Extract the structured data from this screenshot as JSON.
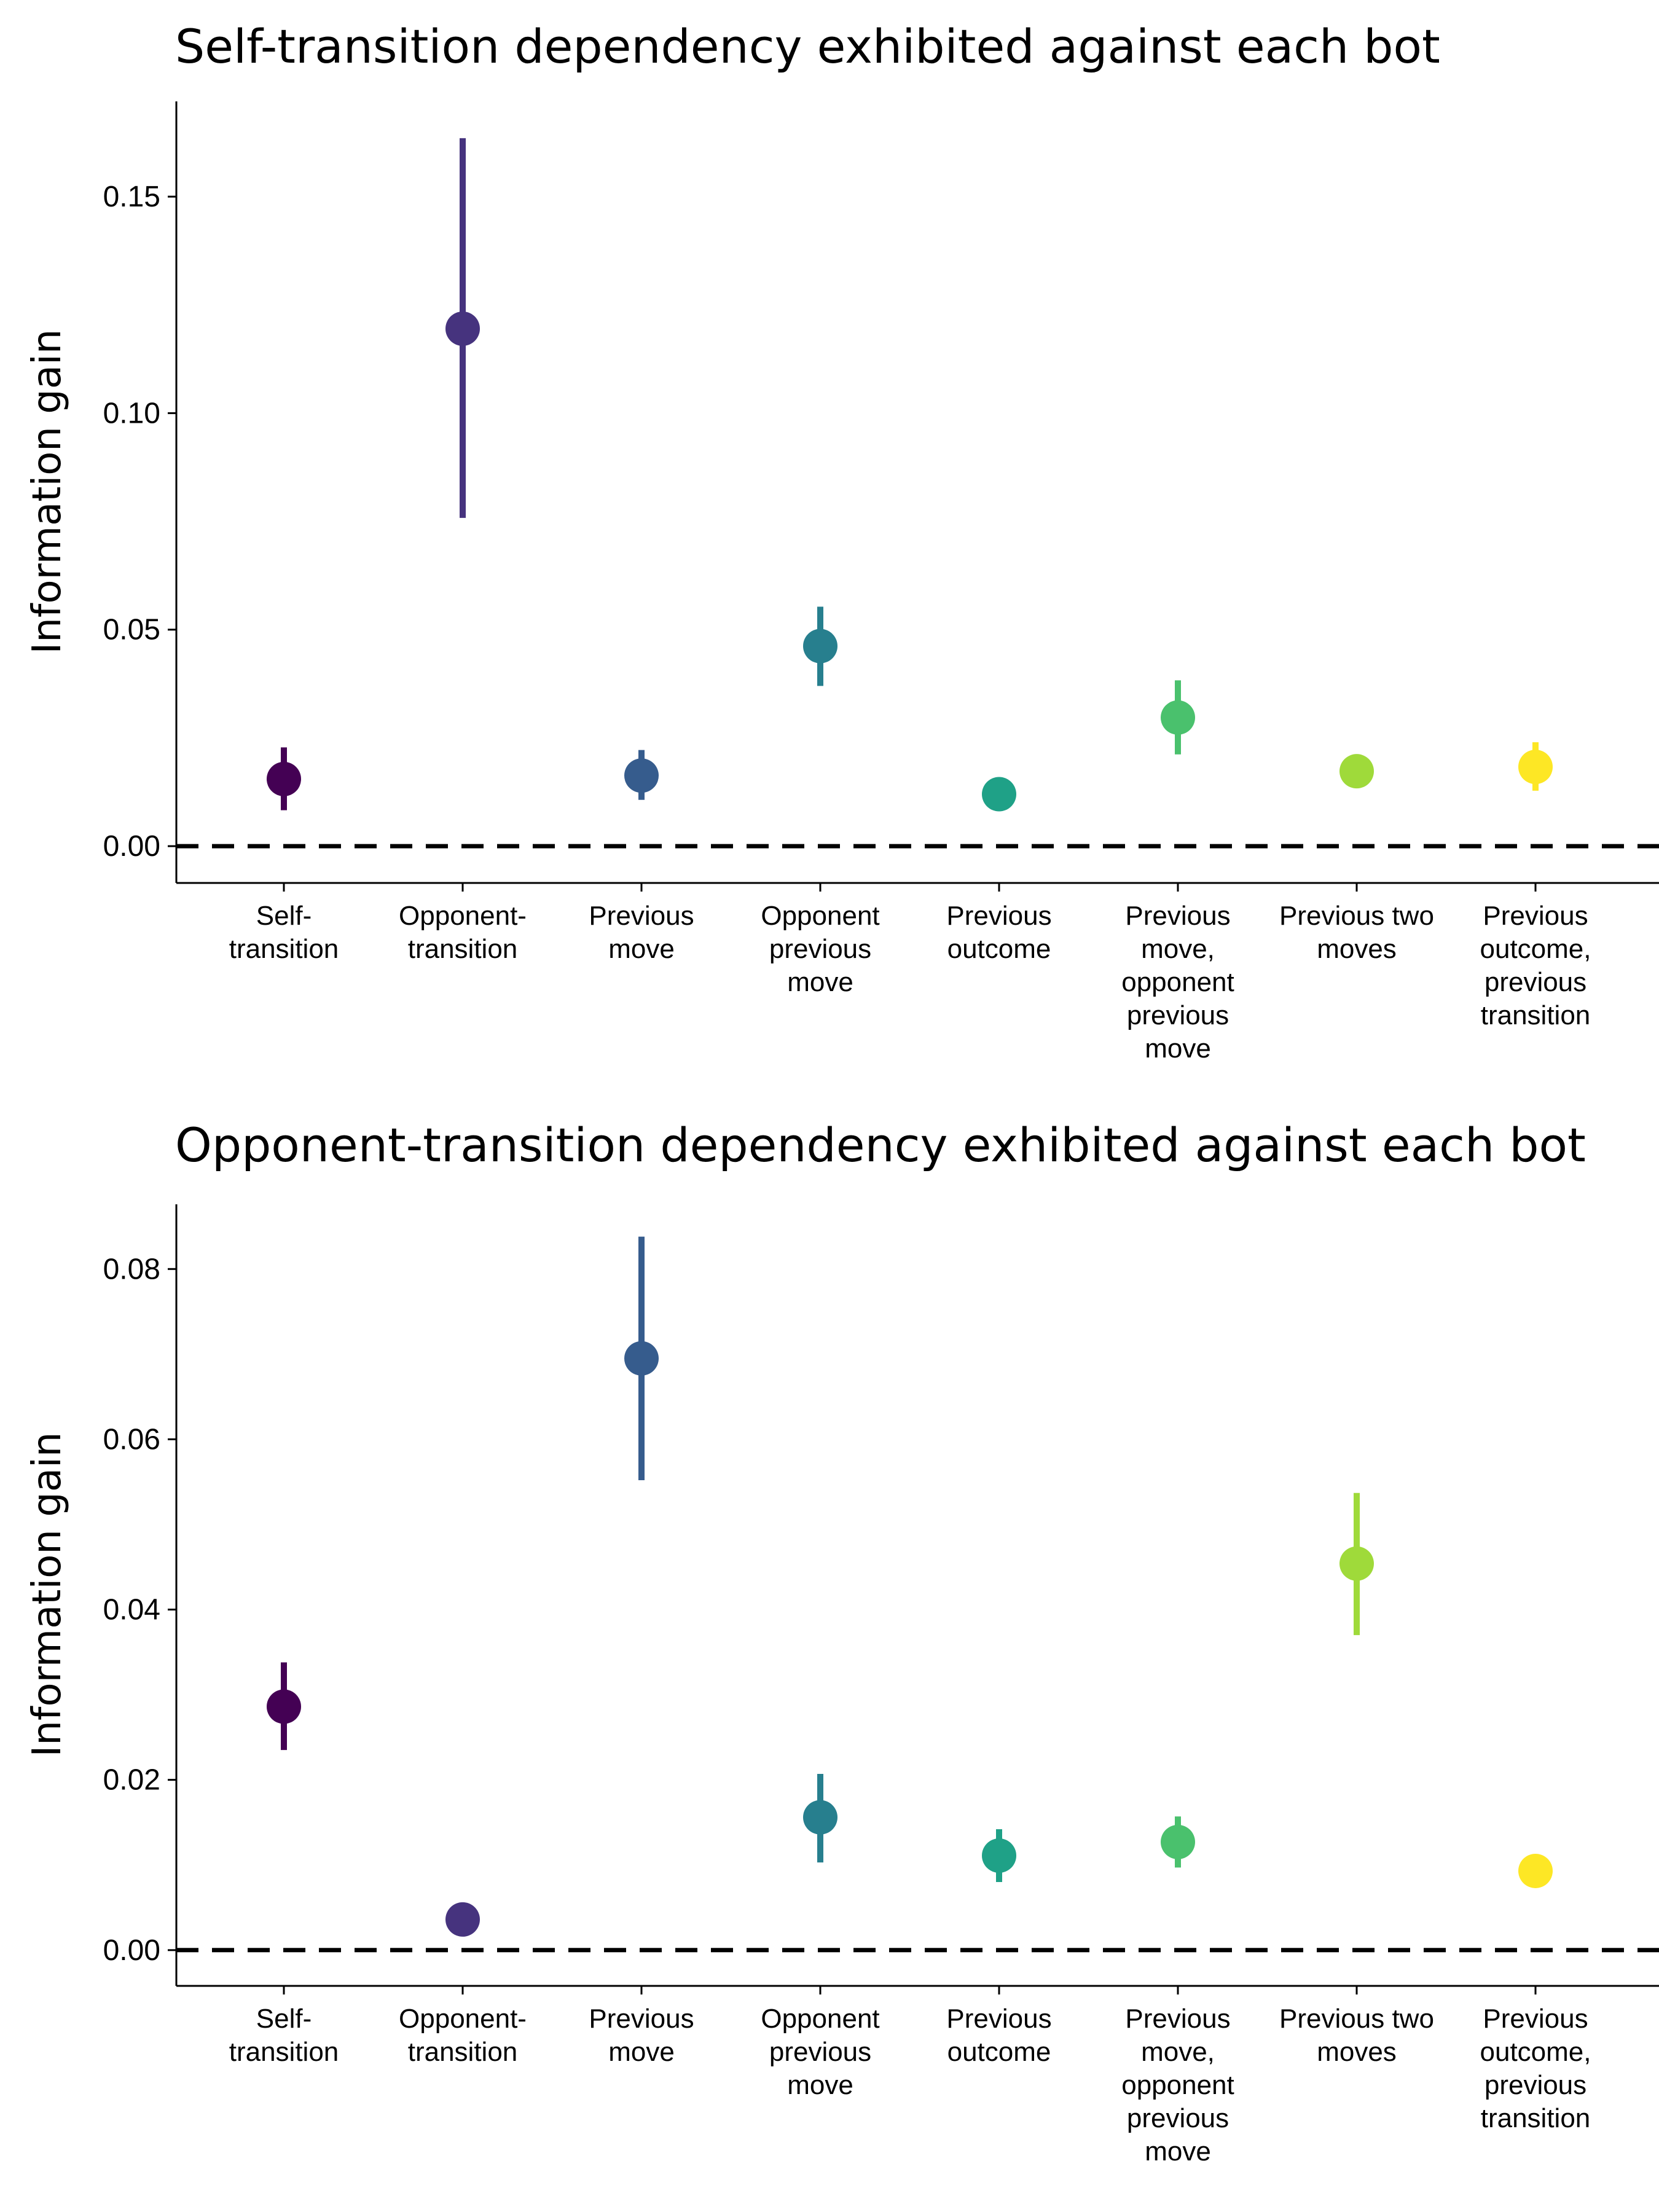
{
  "chart_data": [
    {
      "type": "scatter",
      "title": "Self-transition dependency exhibited against each bot",
      "xlabel": "",
      "ylabel": "Information gain",
      "ylim": [
        -0.0085,
        0.172
      ],
      "yticks": [
        "0.00",
        "0.05",
        "0.10",
        "0.15"
      ],
      "ytick_values": [
        0,
        0.05,
        0.1,
        0.15
      ],
      "reference_line": {
        "y": 0,
        "style": "dashed"
      },
      "categories": [
        [
          "Self-",
          "transition"
        ],
        [
          "Opponent-",
          "transition"
        ],
        [
          "Previous",
          "move"
        ],
        [
          "Opponent",
          "previous",
          "move"
        ],
        [
          "Previous",
          "outcome"
        ],
        [
          "Previous",
          "move,",
          "opponent",
          "previous",
          "move"
        ],
        [
          "Previous two",
          "moves"
        ],
        [
          "Previous",
          "outcome,",
          "previous",
          "transition"
        ]
      ],
      "values": [
        0.0155,
        0.1195,
        0.0163,
        0.0462,
        0.012,
        0.0297,
        0.0173,
        0.0183
      ],
      "lower": [
        0.0083,
        0.0758,
        0.0107,
        0.037,
        0.01,
        0.0212,
        0.015,
        0.0128
      ],
      "upper": [
        0.0228,
        0.1635,
        0.0222,
        0.0553,
        0.014,
        0.0383,
        0.0196,
        0.024
      ],
      "colors": [
        "#440154",
        "#46337E",
        "#365C8D",
        "#277F8E",
        "#1FA187",
        "#4AC16D",
        "#9FDA3A",
        "#FDE725"
      ],
      "grid": false,
      "legend": "none"
    },
    {
      "type": "scatter",
      "title": "Opponent-transition dependency exhibited against each bot",
      "xlabel": "",
      "ylabel": "Information gain",
      "ylim": [
        -0.0042,
        0.0876
      ],
      "yticks": [
        "0.00",
        "0.02",
        "0.04",
        "0.06",
        "0.08"
      ],
      "ytick_values": [
        0,
        0.02,
        0.04,
        0.06,
        0.08
      ],
      "reference_line": {
        "y": 0,
        "style": "dashed"
      },
      "categories": [
        [
          "Self-",
          "transition"
        ],
        [
          "Opponent-",
          "transition"
        ],
        [
          "Previous",
          "move"
        ],
        [
          "Opponent",
          "previous",
          "move"
        ],
        [
          "Previous",
          "outcome"
        ],
        [
          "Previous",
          "move,",
          "opponent",
          "previous",
          "move"
        ],
        [
          "Previous two",
          "moves"
        ],
        [
          "Previous",
          "outcome,",
          "previous",
          "transition"
        ]
      ],
      "values": [
        0.0286,
        0.0036,
        0.0695,
        0.0156,
        0.0111,
        0.0127,
        0.0454,
        0.0093
      ],
      "lower": [
        0.0235,
        0.0026,
        0.0552,
        0.0103,
        0.008,
        0.0097,
        0.037,
        0.008
      ],
      "upper": [
        0.0338,
        0.0046,
        0.0838,
        0.0207,
        0.0142,
        0.0157,
        0.0537,
        0.0106
      ],
      "colors": [
        "#440154",
        "#46337E",
        "#365C8D",
        "#277F8E",
        "#1FA187",
        "#4AC16D",
        "#9FDA3A",
        "#FDE725"
      ],
      "grid": false,
      "legend": "none"
    }
  ]
}
